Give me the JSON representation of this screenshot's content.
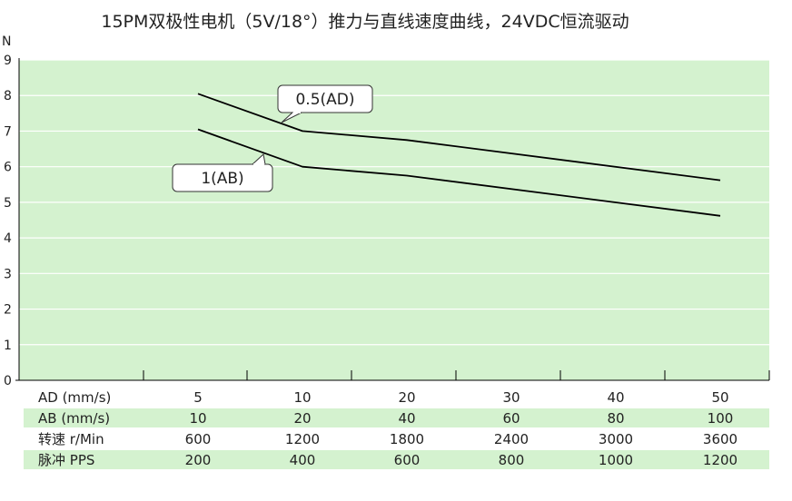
{
  "chart_data": {
    "type": "line",
    "title": "15PM双极性电机（5V/18°）推力与直线速度曲线，24VDC恒流驱动",
    "ylabel": "N",
    "ylim": [
      0,
      9
    ],
    "yticks": [
      "0",
      "1",
      "2",
      "3",
      "4",
      "5",
      "6",
      "7",
      "8",
      "9"
    ],
    "grid": true,
    "series": [
      {
        "name": "0.5(AD)",
        "points": [
          [
            5,
            8.05
          ],
          [
            10,
            7.0
          ],
          [
            20,
            6.75
          ],
          [
            50,
            5.62
          ]
        ]
      },
      {
        "name": "1(AB)",
        "points": [
          [
            5,
            7.05
          ],
          [
            10,
            6.0
          ],
          [
            20,
            5.75
          ],
          [
            50,
            4.62
          ]
        ]
      }
    ],
    "colors": {
      "plot_background": "#d4f2cf",
      "gridline": "#ffffff",
      "line": "#000000",
      "row_stripe": "#d4f2cf"
    },
    "table": {
      "columns": [
        "5",
        "10",
        "20",
        "30",
        "40",
        "50"
      ],
      "rows": [
        {
          "label": "AD (mm/s)",
          "values": [
            "5",
            "10",
            "20",
            "30",
            "40",
            "50"
          ]
        },
        {
          "label": "AB (mm/s)",
          "values": [
            "10",
            "20",
            "40",
            "60",
            "80",
            "100"
          ]
        },
        {
          "label": "转速 r/Min",
          "values": [
            "600",
            "1200",
            "1800",
            "2400",
            "3000",
            "3600"
          ]
        },
        {
          "label": "脉冲 PPS",
          "values": [
            "200",
            "400",
            "600",
            "800",
            "1000",
            "1200"
          ]
        }
      ]
    }
  }
}
